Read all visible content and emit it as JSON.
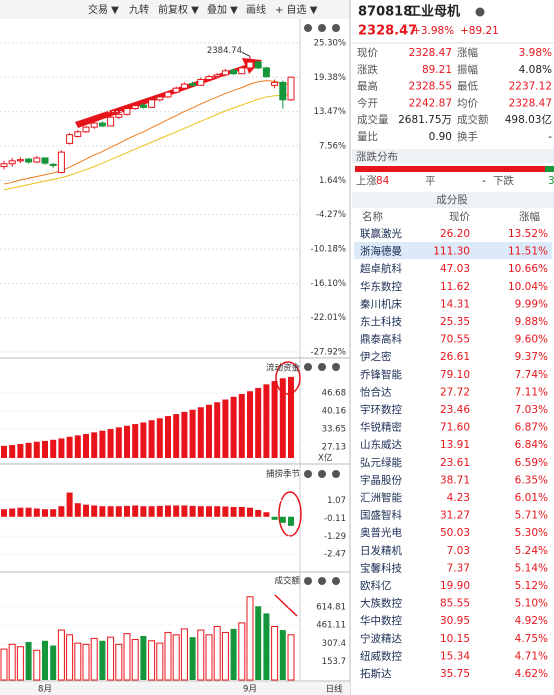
{
  "toolbar": [
    "交易 ▼",
    "九转",
    "前复权 ▼",
    "叠加 ▼",
    "画线",
    "+ 自选 ▼"
  ],
  "chart_data": [
    {
      "type": "candlestick",
      "up_color": "#e8141c",
      "down_color": "#15963a",
      "annotation": "2384.74",
      "ohlc": [
        [
          4,
          5,
          3.5,
          4.5
        ],
        [
          4.5,
          5.5,
          4,
          5
        ],
        [
          5,
          5.6,
          4.6,
          5.2
        ],
        [
          5.3,
          5.5,
          4.5,
          4.8
        ],
        [
          4.8,
          5.8,
          4.6,
          5.5
        ],
        [
          5.5,
          5.6,
          4.3,
          4.6
        ],
        [
          4.4,
          4.6,
          3.8,
          4.2
        ],
        [
          3,
          6.8,
          2.8,
          6.5
        ],
        [
          8,
          9.8,
          7.8,
          9.5
        ],
        [
          9.2,
          10.3,
          9,
          10
        ],
        [
          10,
          11,
          9.8,
          10.8
        ],
        [
          10.8,
          11.8,
          10.5,
          11.5
        ],
        [
          11.5,
          11.8,
          10.8,
          11
        ],
        [
          11,
          12.8,
          10.9,
          12.5
        ],
        [
          12.5,
          13.3,
          12.2,
          13
        ],
        [
          13,
          14.3,
          12.8,
          14
        ],
        [
          14,
          14.8,
          13.8,
          14.5
        ],
        [
          14.6,
          14.9,
          14,
          14.2
        ],
        [
          14.2,
          15.8,
          14.1,
          15.5
        ],
        [
          15.5,
          16.3,
          15.2,
          16
        ],
        [
          16,
          17,
          15.8,
          16.8
        ],
        [
          16.8,
          17.8,
          16.6,
          17.5
        ],
        [
          17.5,
          18.5,
          17.2,
          18.2
        ],
        [
          18.3,
          18.6,
          17.8,
          18
        ],
        [
          18,
          19.3,
          17.9,
          19
        ],
        [
          19,
          19.8,
          18.8,
          19.5
        ],
        [
          19.5,
          20.1,
          19.2,
          19.8
        ],
        [
          19.8,
          20.8,
          19.6,
          20.5
        ],
        [
          20.6,
          20.9,
          19.8,
          20
        ],
        [
          20,
          21.3,
          19.9,
          21
        ],
        [
          21,
          23,
          20.8,
          22
        ],
        [
          22,
          22.3,
          20.8,
          21
        ],
        [
          21,
          21.2,
          19.3,
          19.5
        ],
        [
          18,
          19,
          17.5,
          18.5
        ],
        [
          18.5,
          18.8,
          14,
          15.5
        ],
        [
          15.5,
          19.5,
          15.3,
          19.4
        ]
      ],
      "lines": [
        {
          "color": "#f07a1a",
          "values": [
            1,
            1.3,
            1.7,
            2,
            2.3,
            2.6,
            2.9,
            3.3,
            3.9,
            4.6,
            5.3,
            6,
            6.6,
            7.3,
            8,
            8.7,
            9.4,
            10,
            10.7,
            11.4,
            12.1,
            12.8,
            13.5,
            14.1,
            14.8,
            15.4,
            16,
            16.6,
            17.1,
            17.6,
            18.2,
            18.6,
            18.8,
            18.7,
            18.3,
            18.1
          ]
        },
        {
          "color": "#e8c21a",
          "values": [
            0,
            0.3,
            0.6,
            0.9,
            1.2,
            1.5,
            1.8,
            2.1,
            2.5,
            3,
            3.5,
            4,
            4.6,
            5.2,
            5.8,
            6.4,
            7,
            7.6,
            8.2,
            8.8,
            9.4,
            10,
            10.6,
            11.2,
            11.8,
            12.4,
            13,
            13.6,
            14.1,
            14.6,
            15.1,
            15.6,
            16,
            16.2,
            16.3,
            16.4
          ]
        }
      ],
      "ylim": [
        -28.6,
        28.9
      ],
      "yticks": [
        {
          "value": 25.3,
          "label": "25.30%"
        },
        {
          "value": 19.38,
          "label": "19.38%"
        },
        {
          "value": 13.47,
          "label": "13.47%"
        },
        {
          "value": 7.56,
          "label": "7.56%"
        },
        {
          "value": 1.64,
          "label": "1.64%"
        },
        {
          "value": -4.27,
          "label": "-4.27%"
        },
        {
          "value": -10.18,
          "label": "-10.18%"
        },
        {
          "value": -16.1,
          "label": "-16.10%"
        },
        {
          "value": -22.01,
          "label": "-22.01%"
        },
        {
          "value": -27.92,
          "label": "-27.92%"
        }
      ],
      "grid": true
    },
    {
      "type": "bar",
      "title": "流动资金",
      "unit": "X亿",
      "color": "#e8141c",
      "values": [
        27.5,
        27.8,
        28.2,
        28.6,
        29,
        29.3,
        29.7,
        30.2,
        30.8,
        31.3,
        31.8,
        32.4,
        33,
        33.6,
        34.2,
        34.8,
        35.4,
        36,
        36.8,
        37.5,
        38.3,
        39,
        39.8,
        40.6,
        41.5,
        42.4,
        43.3,
        44.3,
        45.3,
        46.3,
        47.3,
        48.5,
        49.8,
        51,
        52,
        52.5
      ],
      "ylim": [
        23.1,
        57.9
      ],
      "yticks": [
        46.68,
        40.16,
        33.65,
        27.13
      ]
    },
    {
      "type": "bar",
      "title": "捕捞季节",
      "color": "#e8141c",
      "negative_color": "#15963a",
      "values": [
        0.5,
        0.55,
        0.6,
        0.6,
        0.55,
        0.5,
        0.5,
        0.7,
        1.6,
        0.9,
        0.8,
        0.75,
        0.7,
        0.7,
        0.7,
        0.72,
        0.75,
        0.7,
        0.7,
        0.72,
        0.75,
        0.75,
        0.75,
        0.72,
        0.7,
        0.7,
        0.7,
        0.68,
        0.65,
        0.65,
        0.6,
        0.45,
        0.3,
        -0.2,
        -0.4,
        -0.6
      ],
      "ylim": [
        -3.26,
        3.23
      ],
      "yticks": [
        1.07,
        -0.11,
        -1.29,
        -2.47
      ]
    },
    {
      "type": "bar",
      "title": "成交额",
      "values": [
        260,
        300,
        280,
        320,
        250,
        330,
        290,
        420,
        380,
        310,
        300,
        350,
        330,
        360,
        300,
        390,
        340,
        370,
        330,
        310,
        400,
        380,
        430,
        360,
        420,
        380,
        450,
        400,
        430,
        480,
        700,
        620,
        560,
        450,
        420,
        380
      ],
      "ylim": [
        0,
        883
      ],
      "yticks": [
        614.81,
        461.11,
        307.4,
        153.7
      ],
      "categories": [
        null,
        null,
        null,
        null,
        null,
        "8月",
        null,
        null,
        null,
        null,
        null,
        null,
        null,
        null,
        null,
        null,
        null,
        null,
        null,
        null,
        null,
        null,
        null,
        null,
        null,
        null,
        null,
        null,
        null,
        null,
        "9月",
        null,
        null,
        null,
        null,
        null
      ],
      "period": "日线"
    }
  ],
  "quote": {
    "code": "870818",
    "name": "工业母机",
    "price": "2328.47",
    "pct": "+3.98%",
    "chg": "+89.21",
    "rows": [
      [
        "现价",
        "2328.47",
        "涨幅",
        "3.98%"
      ],
      [
        "涨跌",
        "89.21",
        "振幅",
        "4.08%"
      ],
      [
        "最高",
        "2328.55",
        "最低",
        "2237.12"
      ],
      [
        "今开",
        "2242.87",
        "均价",
        "2328.47"
      ],
      [
        "成交量",
        "2681.75万",
        "成交额",
        "498.03亿"
      ],
      [
        "量比",
        "0.90",
        "换手",
        "-"
      ]
    ]
  },
  "distribution": {
    "title": "涨跌分布",
    "up_label": "上涨",
    "up": "84",
    "flat_label": "平",
    "flat": "-",
    "down_label": "下跌",
    "down": "3"
  },
  "constituents": {
    "title": "成分股",
    "headers": [
      "名称",
      "现价",
      "涨幅"
    ],
    "rows": [
      [
        "联赢激光",
        "26.20",
        "13.52%"
      ],
      [
        "浙海德曼",
        "111.30",
        "11.51%"
      ],
      [
        "超卓航科",
        "47.03",
        "10.66%"
      ],
      [
        "华东数控",
        "11.62",
        "10.04%"
      ],
      [
        "秦川机床",
        "14.31",
        "9.99%"
      ],
      [
        "东土科技",
        "25.35",
        "9.88%"
      ],
      [
        "鼎泰高科",
        "70.55",
        "9.60%"
      ],
      [
        "伊之密",
        "26.61",
        "9.37%"
      ],
      [
        "乔锋智能",
        "79.10",
        "7.74%"
      ],
      [
        "怡合达",
        "27.72",
        "7.11%"
      ],
      [
        "宇环数控",
        "23.46",
        "7.03%"
      ],
      [
        "华锐精密",
        "71.60",
        "6.87%"
      ],
      [
        "山东威达",
        "13.91",
        "6.84%"
      ],
      [
        "弘元绿能",
        "23.61",
        "6.59%"
      ],
      [
        "宇晶股份",
        "38.71",
        "6.35%"
      ],
      [
        "汇洲智能",
        "4.23",
        "6.01%"
      ],
      [
        "国盛智科",
        "31.27",
        "5.71%"
      ],
      [
        "奥普光电",
        "50.03",
        "5.30%"
      ],
      [
        "日发精机",
        "7.03",
        "5.24%"
      ],
      [
        "宝馨科技",
        "7.37",
        "5.14%"
      ],
      [
        "欧科亿",
        "19.90",
        "5.12%"
      ],
      [
        "大族数控",
        "85.55",
        "5.10%"
      ],
      [
        "华中数控",
        "30.95",
        "4.92%"
      ],
      [
        "宁波精达",
        "10.15",
        "4.75%"
      ],
      [
        "纽威数控",
        "15.34",
        "4.71%"
      ],
      [
        "拓斯达",
        "35.75",
        "4.62%"
      ]
    ]
  }
}
